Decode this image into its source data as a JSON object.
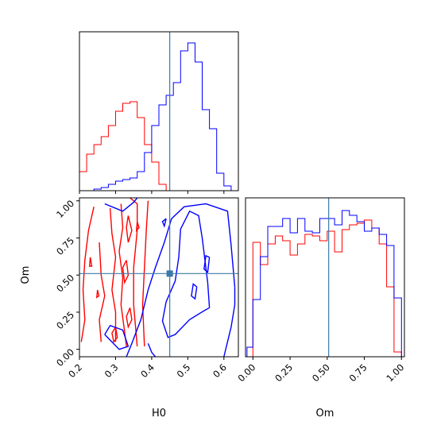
{
  "chart_data": {
    "type": "corner",
    "parameters": [
      "H0",
      "Om"
    ],
    "truth": {
      "H0": 0.45,
      "Om": 0.51
    },
    "colors": {
      "series_a": "#0000ff",
      "series_b": "#ff0000",
      "truth": "#3b7aa8"
    },
    "axes": {
      "H0": {
        "range": [
          0.2,
          0.64
        ],
        "ticks": [
          0.2,
          0.3,
          0.4,
          0.5,
          0.6
        ],
        "tick_labels": [
          "0.2",
          "0.3",
          "0.4",
          "0.5",
          "0.6"
        ],
        "label": "H0"
      },
      "Om": {
        "range": [
          -0.05,
          1.02
        ],
        "ticks": [
          0.0,
          0.25,
          0.5,
          0.75,
          1.0
        ],
        "tick_labels": [
          "0.00",
          "0.25",
          "0.50",
          "0.75",
          "1.00"
        ],
        "label": "Om"
      }
    },
    "hist_H0": {
      "edges": [
        0.2,
        0.22,
        0.24,
        0.26,
        0.28,
        0.3,
        0.32,
        0.34,
        0.36,
        0.38,
        0.4,
        0.42,
        0.44,
        0.46,
        0.48,
        0.5,
        0.52,
        0.54,
        0.56,
        0.58,
        0.6,
        0.62
      ],
      "series_a": [
        0,
        0,
        0.01,
        0.02,
        0.04,
        0.06,
        0.07,
        0.08,
        0.12,
        0.24,
        0.41,
        0.54,
        0.6,
        0.68,
        0.88,
        0.93,
        0.81,
        0.51,
        0.39,
        0.11,
        0.03
      ],
      "series_b": [
        0.12,
        0.23,
        0.29,
        0.34,
        0.41,
        0.5,
        0.55,
        0.56,
        0.46,
        0.29,
        0.18,
        0.04,
        0,
        0,
        0,
        0,
        0,
        0,
        0,
        0,
        0
      ]
    },
    "hist_Om": {
      "edges": [
        -0.04,
        0.0,
        0.05,
        0.1,
        0.15,
        0.2,
        0.25,
        0.3,
        0.35,
        0.4,
        0.45,
        0.5,
        0.55,
        0.6,
        0.65,
        0.7,
        0.75,
        0.8,
        0.85,
        0.9,
        0.95,
        1.0
      ],
      "series_a": [
        0.06,
        0.36,
        0.63,
        0.82,
        0.82,
        0.87,
        0.78,
        0.87,
        0.79,
        0.78,
        0.87,
        0.87,
        0.83,
        0.92,
        0.89,
        0.85,
        0.79,
        0.81,
        0.77,
        0.7,
        0.37
      ],
      "series_b": [
        0,
        0.72,
        0.58,
        0.71,
        0.76,
        0.73,
        0.64,
        0.71,
        0.77,
        0.76,
        0.73,
        0.79,
        0.66,
        0.8,
        0.83,
        0.84,
        0.86,
        0.81,
        0.71,
        0.44,
        0.03
      ]
    },
    "contours_2d": {
      "series_a": [
        [
          [
            0.56,
            0.28
          ],
          [
            0.555,
            0.45
          ],
          [
            0.54,
            0.75
          ],
          [
            0.53,
            0.9
          ],
          [
            0.505,
            0.93
          ],
          [
            0.48,
            0.81
          ],
          [
            0.475,
            0.62
          ],
          [
            0.465,
            0.46
          ],
          [
            0.44,
            0.32
          ],
          [
            0.43,
            0.19
          ],
          [
            0.445,
            0.08
          ],
          [
            0.465,
            0.1
          ],
          [
            0.505,
            0.2
          ],
          [
            0.545,
            0.26
          ],
          [
            0.56,
            0.28
          ]
        ],
        [
          [
            0.63,
            0.42
          ],
          [
            0.62,
            0.7
          ],
          [
            0.61,
            0.93
          ],
          [
            0.55,
            0.98
          ],
          [
            0.49,
            0.96
          ],
          [
            0.455,
            0.88
          ],
          [
            0.435,
            0.72
          ],
          [
            0.41,
            0.55
          ],
          [
            0.39,
            0.4
          ],
          [
            0.37,
            0.2
          ],
          [
            0.345,
            0.04
          ],
          [
            0.33,
            -0.05
          ]
        ],
        [
          [
            0.6,
            -0.05
          ],
          [
            0.62,
            0.15
          ],
          [
            0.63,
            0.3
          ],
          [
            0.63,
            0.42
          ]
        ],
        [
          [
            0.56,
            0.62
          ],
          [
            0.555,
            0.52
          ],
          [
            0.545,
            0.54
          ],
          [
            0.55,
            0.63
          ],
          [
            0.56,
            0.62
          ]
        ],
        [
          [
            0.525,
            0.42
          ],
          [
            0.52,
            0.34
          ],
          [
            0.51,
            0.36
          ],
          [
            0.515,
            0.44
          ],
          [
            0.525,
            0.42
          ]
        ],
        [
          [
            0.44,
            0.88
          ],
          [
            0.435,
            0.83
          ],
          [
            0.43,
            0.86
          ],
          [
            0.44,
            0.88
          ]
        ],
        [
          [
            0.27,
            0.98
          ],
          [
            0.32,
            0.93
          ],
          [
            0.35,
            0.99
          ],
          [
            0.36,
            1.02
          ]
        ],
        [
          [
            0.27,
            0.1
          ],
          [
            0.31,
            0.0
          ],
          [
            0.335,
            0.02
          ],
          [
            0.32,
            0.13
          ],
          [
            0.285,
            0.16
          ],
          [
            0.27,
            0.1
          ]
        ],
        [
          [
            0.39,
            0.04
          ],
          [
            0.4,
            -0.02
          ],
          [
            0.41,
            -0.05
          ]
        ]
      ],
      "series_b": [
        [
          [
            0.36,
            0.02
          ],
          [
            0.35,
            0.3
          ],
          [
            0.35,
            0.55
          ],
          [
            0.36,
            0.8
          ],
          [
            0.36,
            0.98
          ],
          [
            0.34,
            1.02
          ]
        ],
        [
          [
            0.38,
            0.02
          ],
          [
            0.375,
            0.3
          ],
          [
            0.38,
            0.55
          ],
          [
            0.385,
            0.8
          ],
          [
            0.39,
            1.0
          ]
        ],
        [
          [
            0.255,
            0.72
          ],
          [
            0.26,
            0.5
          ],
          [
            0.27,
            0.36
          ],
          [
            0.255,
            0.2
          ],
          [
            0.26,
            0.05
          ]
        ],
        [
          [
            0.285,
            0.95
          ],
          [
            0.29,
            0.78
          ],
          [
            0.3,
            0.62
          ],
          [
            0.29,
            0.4
          ],
          [
            0.3,
            0.25
          ],
          [
            0.3,
            0.05
          ]
        ],
        [
          [
            0.315,
            0.98
          ],
          [
            0.32,
            0.82
          ],
          [
            0.31,
            0.66
          ],
          [
            0.32,
            0.48
          ],
          [
            0.315,
            0.3
          ],
          [
            0.325,
            0.12
          ],
          [
            0.33,
            0.02
          ]
        ],
        [
          [
            0.24,
            0.96
          ],
          [
            0.225,
            0.8
          ],
          [
            0.215,
            0.6
          ],
          [
            0.21,
            0.4
          ],
          [
            0.215,
            0.2
          ],
          [
            0.205,
            0.05
          ]
        ],
        [
          [
            0.335,
            0.9
          ],
          [
            0.345,
            0.8
          ],
          [
            0.335,
            0.72
          ],
          [
            0.33,
            0.82
          ],
          [
            0.335,
            0.9
          ]
        ],
        [
          [
            0.33,
            0.6
          ],
          [
            0.335,
            0.5
          ],
          [
            0.325,
            0.45
          ],
          [
            0.32,
            0.55
          ],
          [
            0.33,
            0.6
          ]
        ],
        [
          [
            0.34,
            0.28
          ],
          [
            0.345,
            0.2
          ],
          [
            0.335,
            0.15
          ],
          [
            0.33,
            0.22
          ],
          [
            0.34,
            0.28
          ]
        ],
        [
          [
            0.3,
            0.15
          ],
          [
            0.305,
            0.08
          ],
          [
            0.295,
            0.05
          ],
          [
            0.29,
            0.11
          ],
          [
            0.3,
            0.15
          ]
        ],
        [
          [
            0.23,
            0.62
          ],
          [
            0.234,
            0.56
          ],
          [
            0.228,
            0.56
          ],
          [
            0.23,
            0.62
          ]
        ],
        [
          [
            0.36,
            0.86
          ],
          [
            0.365,
            0.82
          ],
          [
            0.358,
            0.8
          ],
          [
            0.36,
            0.86
          ]
        ],
        [
          [
            0.25,
            0.4
          ],
          [
            0.254,
            0.36
          ],
          [
            0.248,
            0.35
          ],
          [
            0.25,
            0.4
          ]
        ]
      ]
    }
  }
}
